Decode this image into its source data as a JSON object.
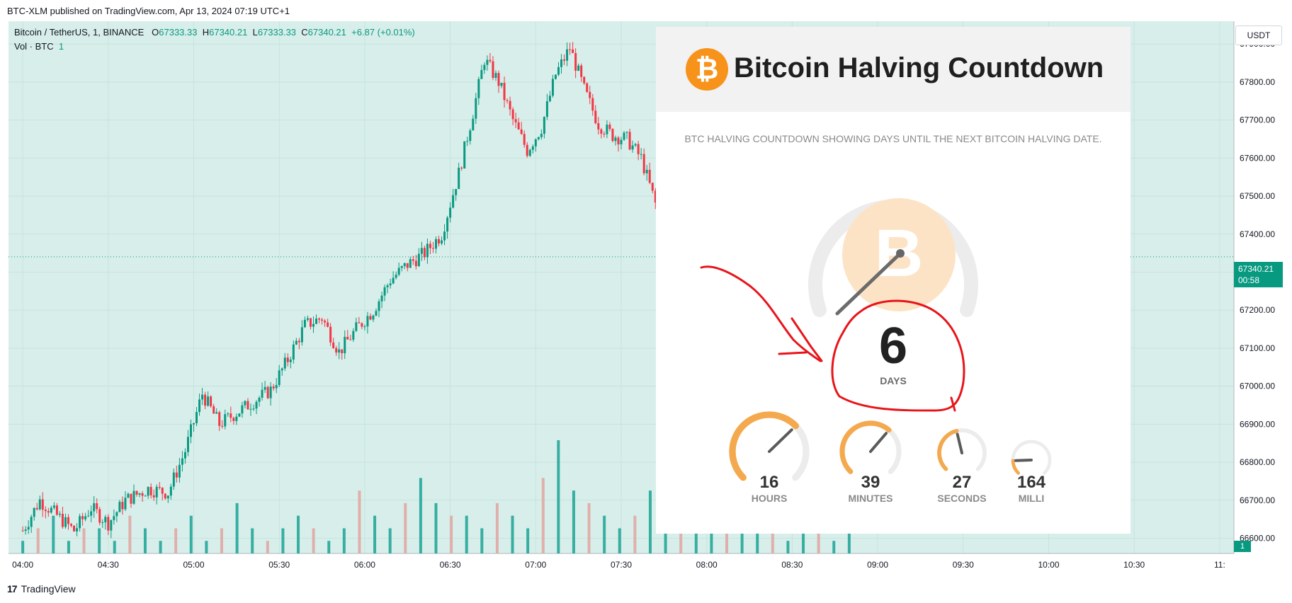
{
  "header": {
    "published": "BTC-XLM published on TradingView.com, Apr 13, 2024 07:19 UTC+1"
  },
  "legend": {
    "symbol": "Bitcoin / TetherUS, 1, BINANCE",
    "o_label": "O",
    "o_value": "67333.33",
    "h_label": "H",
    "h_value": "67340.21",
    "l_label": "L",
    "l_value": "67333.33",
    "c_label": "C",
    "c_value": "67340.21",
    "change": "+6.87 (+0.01%)",
    "volume_label": "Vol · BTC",
    "volume_value": "1"
  },
  "currency_button": "USDT",
  "price_tag": {
    "price": "67340.21",
    "countdown": "00:58"
  },
  "volume_tag": "1",
  "footer": {
    "brand_mark": "17",
    "brand": "TradingView"
  },
  "countdown_card": {
    "title": "Bitcoin Halving Countdown",
    "logo_symbol": "₿",
    "subtitle": "BTC HALVING COUNTDOWN SHOWING DAYS UNTIL THE NEXT BITCOIN HALVING DATE.",
    "days": {
      "value": "6",
      "label": "DAYS"
    },
    "units": [
      {
        "value": "16",
        "label": "HOURS",
        "fraction": 0.67
      },
      {
        "value": "39",
        "label": "MINUTES",
        "fraction": 0.65
      },
      {
        "value": "27",
        "label": "SECONDS",
        "fraction": 0.45
      },
      {
        "value": "164",
        "label": "MILLI",
        "fraction": 0.16
      }
    ]
  },
  "colors": {
    "up": "#089981",
    "down": "#f23645",
    "bg": "#d8eeea",
    "orange": "#f7931a",
    "annotation": "#e8141a"
  },
  "chart_data": {
    "type": "candlestick",
    "interval": "1 minute",
    "y_axis": {
      "ticks": [
        "67900.00",
        "67800.00",
        "67700.00",
        "67600.00",
        "67500.00",
        "67400.00",
        "67300.00",
        "67200.00",
        "67100.00",
        "67000.00",
        "66900.00",
        "66800.00",
        "66700.00",
        "66600.00"
      ],
      "range": [
        66560,
        67960
      ]
    },
    "x_axis": {
      "ticks": [
        "04:00",
        "04:30",
        "05:00",
        "05:30",
        "06:00",
        "06:30",
        "07:00",
        "07:30",
        "08:00",
        "08:30",
        "09:00",
        "09:30",
        "10:00",
        "10:30",
        "11:"
      ],
      "range_minutes": [
        235,
        665
      ]
    },
    "path_points": [
      [
        240,
        66620
      ],
      [
        246,
        66700
      ],
      [
        252,
        66660
      ],
      [
        258,
        66620
      ],
      [
        264,
        66680
      ],
      [
        270,
        66640
      ],
      [
        276,
        66700
      ],
      [
        284,
        66730
      ],
      [
        291,
        66720
      ],
      [
        297,
        66830
      ],
      [
        303,
        66980
      ],
      [
        309,
        66900
      ],
      [
        315,
        66930
      ],
      [
        321,
        66960
      ],
      [
        327,
        66990
      ],
      [
        333,
        67070
      ],
      [
        339,
        67160
      ],
      [
        345,
        67180
      ],
      [
        351,
        67090
      ],
      [
        357,
        67150
      ],
      [
        363,
        67200
      ],
      [
        369,
        67280
      ],
      [
        375,
        67320
      ],
      [
        381,
        67350
      ],
      [
        387,
        67400
      ],
      [
        393,
        67560
      ],
      [
        398,
        67720
      ],
      [
        402,
        67860
      ],
      [
        407,
        67800
      ],
      [
        412,
        67700
      ],
      [
        417,
        67620
      ],
      [
        422,
        67680
      ],
      [
        427,
        67820
      ],
      [
        432,
        67890
      ],
      [
        437,
        67780
      ],
      [
        442,
        67690
      ],
      [
        447,
        67660
      ],
      [
        452,
        67650
      ],
      [
        457,
        67600
      ],
      [
        462,
        67480
      ],
      [
        467,
        67420
      ],
      [
        472,
        67470
      ],
      [
        477,
        67520
      ],
      [
        482,
        67560
      ],
      [
        487,
        67490
      ],
      [
        492,
        67460
      ],
      [
        497,
        67420
      ],
      [
        502,
        67370
      ],
      [
        507,
        67420
      ],
      [
        512,
        67460
      ],
      [
        517,
        67480
      ],
      [
        522,
        67450
      ],
      [
        527,
        67420
      ],
      [
        530,
        67340
      ]
    ],
    "volume": [
      1,
      2,
      3,
      1,
      2,
      2,
      1,
      3,
      2,
      1,
      2,
      3,
      1,
      2,
      4,
      2,
      1,
      2,
      3,
      2,
      1,
      2,
      5,
      3,
      2,
      4,
      6,
      4,
      3,
      3,
      2,
      4,
      3,
      2,
      6,
      9,
      5,
      4,
      3,
      2,
      3,
      5,
      4,
      3,
      2,
      3,
      4,
      2,
      3,
      2,
      1,
      2,
      2,
      1,
      2
    ],
    "last_price": 67340.21
  }
}
